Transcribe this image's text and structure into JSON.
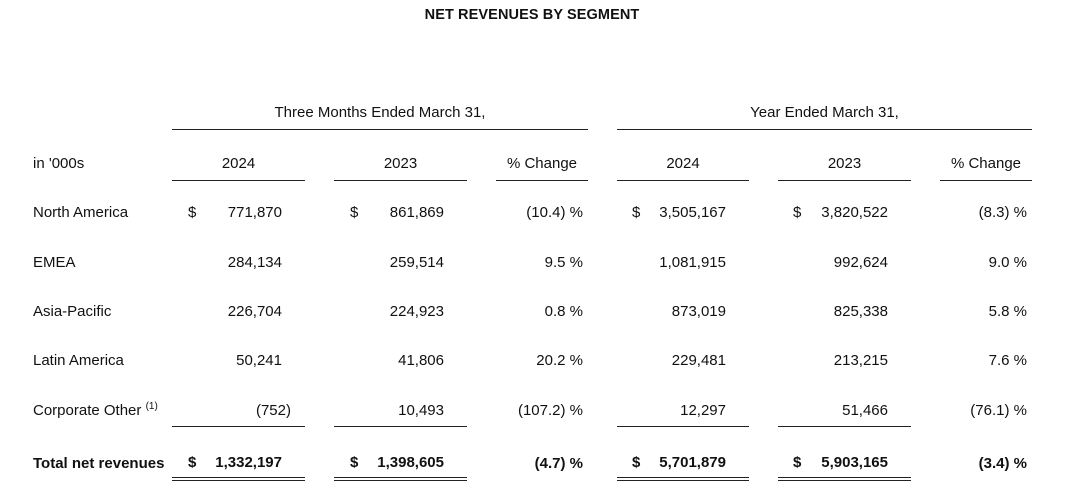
{
  "title": "NET REVENUES BY SEGMENT",
  "groups": {
    "three_months": "Three Months Ended March 31,",
    "year": "Year Ended March 31,"
  },
  "header": {
    "units": "in '000s",
    "cols": [
      "2024",
      "2023",
      "% Change",
      "2024",
      "2023",
      "% Change"
    ]
  },
  "rows": [
    {
      "label": "North America",
      "sup": "",
      "dollar": true,
      "values": [
        "771,870",
        "861,869",
        "(10.4) %",
        "3,505,167",
        "3,820,522",
        "(8.3) %"
      ]
    },
    {
      "label": "EMEA",
      "sup": "",
      "dollar": false,
      "values": [
        "284,134",
        "259,514",
        "9.5 %",
        "1,081,915",
        "992,624",
        "9.0 %"
      ]
    },
    {
      "label": "Asia-Pacific",
      "sup": "",
      "dollar": false,
      "values": [
        "226,704",
        "224,923",
        "0.8 %",
        "873,019",
        "825,338",
        "5.8 %"
      ]
    },
    {
      "label": "Latin America",
      "sup": "",
      "dollar": false,
      "values": [
        "50,241",
        "41,806",
        "20.2 %",
        "229,481",
        "213,215",
        "7.6 %"
      ]
    },
    {
      "label": "Corporate Other",
      "sup": "(1)",
      "dollar": false,
      "values": [
        "(752)",
        "10,493",
        "(107.2) %",
        "12,297",
        "51,466",
        "(76.1) %"
      ]
    },
    {
      "label": "Total net revenues",
      "sup": "",
      "dollar": true,
      "bold": true,
      "values": [
        "1,332,197",
        "1,398,605",
        "(4.7) %",
        "5,701,879",
        "5,903,165",
        "(3.4) %"
      ]
    }
  ],
  "currency_symbol": "$"
}
